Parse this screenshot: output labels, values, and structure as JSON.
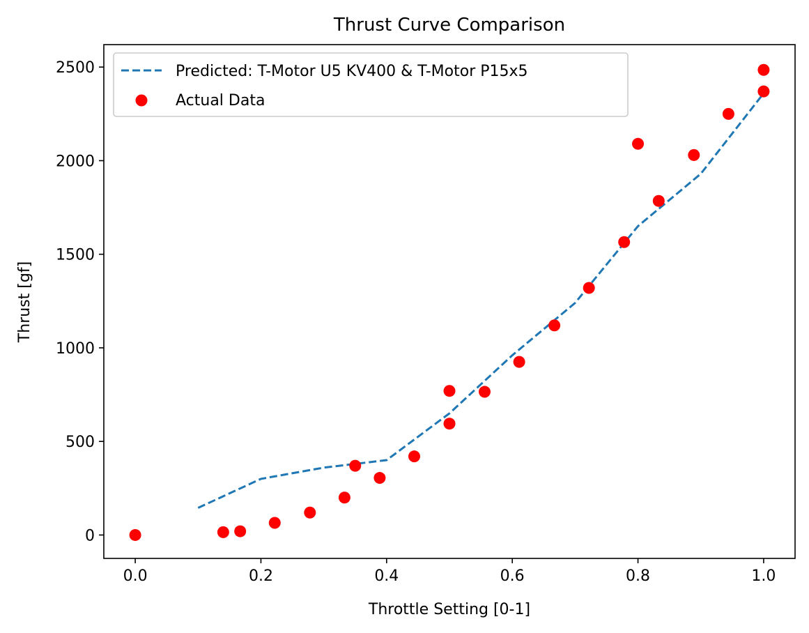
{
  "chart_data": {
    "type": "scatter",
    "title": "Thrust Curve Comparison",
    "xlabel": "Throttle Setting [0-1]",
    "ylabel": "Thrust [gf]",
    "xlim": [
      -0.05,
      1.05
    ],
    "ylim": [
      -125,
      2620
    ],
    "xticks": [
      0.0,
      0.2,
      0.4,
      0.6,
      0.8,
      1.0
    ],
    "xtick_labels": [
      "0.0",
      "0.2",
      "0.4",
      "0.6",
      "0.8",
      "1.0"
    ],
    "yticks": [
      0,
      500,
      1000,
      1500,
      2000,
      2500
    ],
    "ytick_labels": [
      "0",
      "500",
      "1000",
      "1500",
      "2000",
      "2500"
    ],
    "grid": false,
    "legend_position": "top-left",
    "series": [
      {
        "name": "Predicted: T-Motor U5 KV400 & T-Motor P15x5",
        "style": "dashed-line",
        "color": "#1f77b4",
        "x": [
          0.1,
          0.2,
          0.3,
          0.4,
          0.5,
          0.6,
          0.7,
          0.8,
          0.9,
          1.0
        ],
        "y": [
          145,
          300,
          360,
          400,
          650,
          960,
          1240,
          1650,
          1930,
          2360
        ]
      },
      {
        "name": "Actual Data",
        "style": "marker",
        "color": "#ff0000",
        "x": [
          0.0,
          0.14,
          0.167,
          0.222,
          0.278,
          0.333,
          0.35,
          0.389,
          0.444,
          0.5,
          0.5,
          0.556,
          0.611,
          0.667,
          0.722,
          0.778,
          0.8,
          0.833,
          0.889,
          0.944,
          1.0,
          1.0
        ],
        "y": [
          0,
          15,
          20,
          65,
          120,
          200,
          370,
          305,
          420,
          595,
          770,
          765,
          925,
          1120,
          1320,
          1565,
          2090,
          1785,
          2030,
          2250,
          2370,
          2485
        ]
      }
    ]
  }
}
